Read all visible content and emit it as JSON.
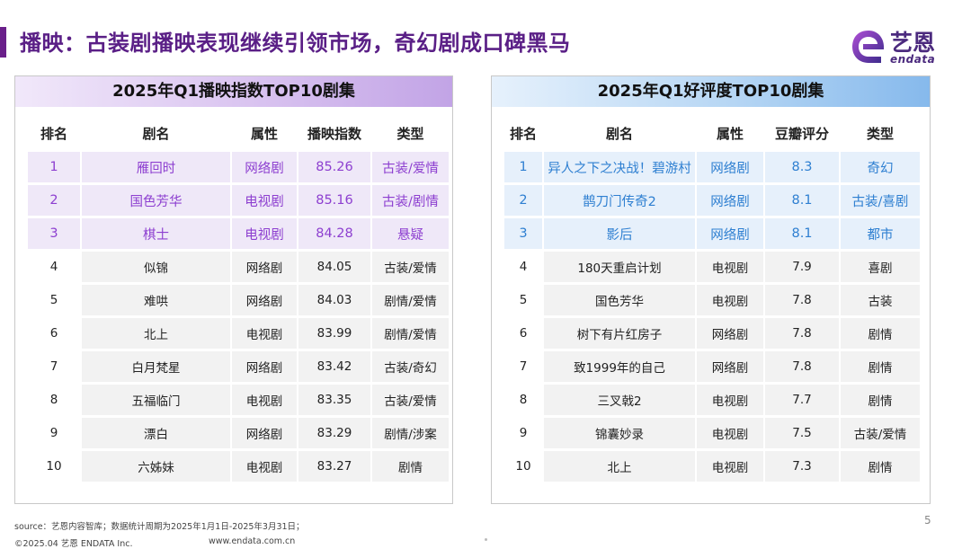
{
  "title": "播映：古装剧播映表现继续引领市场，奇幻剧成口碑黑马",
  "logo": {
    "cn": "艺恩",
    "en": "endata"
  },
  "colors": {
    "brand": "#5a1f86",
    "left_highlight": "#8d3fd0",
    "right_highlight": "#2e7fd1"
  },
  "left": {
    "title": "2025年Q1播映指数TOP10剧集",
    "headers": [
      "排名",
      "剧名",
      "属性",
      "播映指数",
      "类型"
    ],
    "rows": [
      [
        "1",
        "雁回时",
        "网络剧",
        "85.26",
        "古装/爱情"
      ],
      [
        "2",
        "国色芳华",
        "电视剧",
        "85.16",
        "古装/剧情"
      ],
      [
        "3",
        "棋士",
        "电视剧",
        "84.28",
        "悬疑"
      ],
      [
        "4",
        "似锦",
        "网络剧",
        "84.05",
        "古装/爱情"
      ],
      [
        "5",
        "难哄",
        "网络剧",
        "84.03",
        "剧情/爱情"
      ],
      [
        "6",
        "北上",
        "电视剧",
        "83.99",
        "剧情/爱情"
      ],
      [
        "7",
        "白月梵星",
        "网络剧",
        "83.42",
        "古装/奇幻"
      ],
      [
        "8",
        "五福临门",
        "电视剧",
        "83.35",
        "古装/爱情"
      ],
      [
        "9",
        "漂白",
        "网络剧",
        "83.29",
        "剧情/涉案"
      ],
      [
        "10",
        "六姊妹",
        "电视剧",
        "83.27",
        "剧情"
      ]
    ]
  },
  "right": {
    "title": "2025年Q1好评度TOP10剧集",
    "headers": [
      "排名",
      "剧名",
      "属性",
      "豆瓣评分",
      "类型"
    ],
    "rows": [
      [
        "1",
        "异人之下之决战！碧游村",
        "网络剧",
        "8.3",
        "奇幻"
      ],
      [
        "2",
        "鹊刀门传奇2",
        "网络剧",
        "8.1",
        "古装/喜剧"
      ],
      [
        "3",
        "影后",
        "网络剧",
        "8.1",
        "都市"
      ],
      [
        "4",
        "180天重启计划",
        "电视剧",
        "7.9",
        "喜剧"
      ],
      [
        "5",
        "国色芳华",
        "电视剧",
        "7.8",
        "古装"
      ],
      [
        "6",
        "树下有片红房子",
        "网络剧",
        "7.8",
        "剧情"
      ],
      [
        "7",
        "致1999年的自己",
        "网络剧",
        "7.8",
        "剧情"
      ],
      [
        "8",
        "三叉戟2",
        "电视剧",
        "7.7",
        "剧情"
      ],
      [
        "9",
        "锦囊妙录",
        "电视剧",
        "7.5",
        "古装/爱情"
      ],
      [
        "10",
        "北上",
        "电视剧",
        "7.3",
        "剧情"
      ]
    ]
  },
  "footer": {
    "source": "source：艺恩内容智库；数据统计周期为2025年1月1日-2025年3月31日；",
    "copyright": "©2025.04 艺恩 ENDATA Inc.",
    "url": "www.endata.com.cn",
    "page": "5"
  }
}
